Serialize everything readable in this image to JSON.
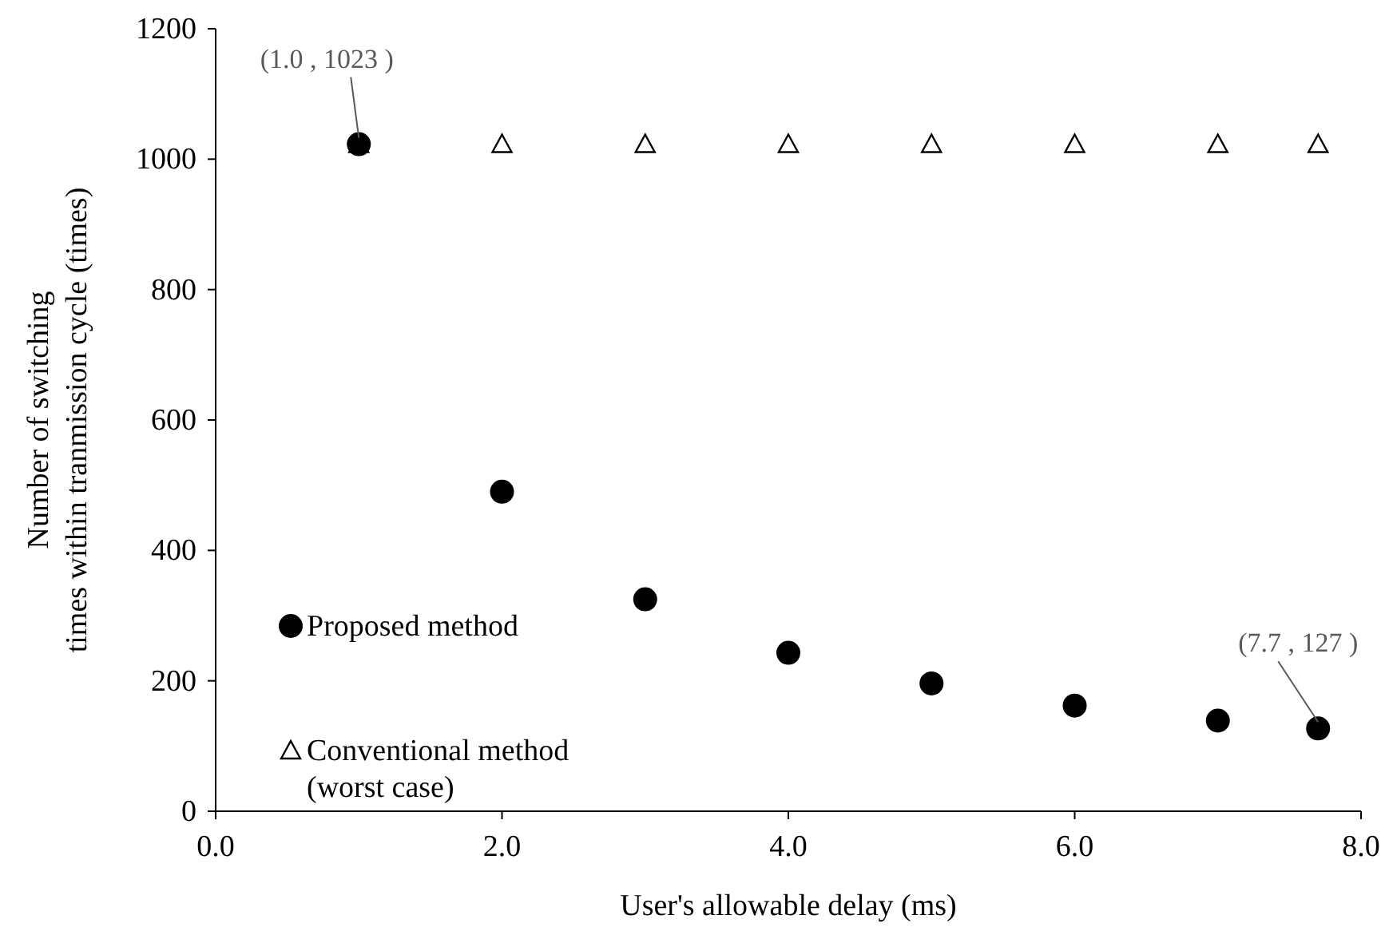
{
  "chart_data": {
    "type": "scatter",
    "xlabel": "User's allowable delay (ms)",
    "ylabel": "Number of switching times within tranmission cycle (times)",
    "xlim": [
      0,
      8
    ],
    "xticks": [
      {
        "value": 0,
        "label": "0.0"
      },
      {
        "value": 2,
        "label": "2.0"
      },
      {
        "value": 4,
        "label": "4.0"
      },
      {
        "value": 6,
        "label": "6.0"
      },
      {
        "value": 8,
        "label": "8.0"
      }
    ],
    "ylim": [
      0,
      1200
    ],
    "yticks": [
      0,
      200,
      400,
      600,
      800,
      1000,
      1200
    ],
    "grid": false,
    "legend": "bottom left",
    "series": [
      {
        "name": "Proposed method",
        "color": "#000000",
        "marker": "circle",
        "x": [
          1,
          2,
          3,
          4,
          5,
          6,
          7,
          7.7
        ],
        "values": [
          1023,
          490,
          325,
          243,
          196,
          162,
          139,
          127
        ]
      },
      {
        "name": "Conventional method (worst case)",
        "color": "#000000",
        "marker": "triangle",
        "x": [
          1,
          2,
          3,
          4,
          5,
          6,
          7,
          7.7
        ],
        "values": [
          1023,
          1023,
          1023,
          1023,
          1023,
          1023,
          1023,
          1023
        ]
      }
    ],
    "annotations": [
      {
        "text": "(1.0 , 1023 )",
        "x": 1,
        "y": 1023
      },
      {
        "text": "(7.7 , 127 )",
        "x": 7.7,
        "y": 127
      }
    ]
  }
}
